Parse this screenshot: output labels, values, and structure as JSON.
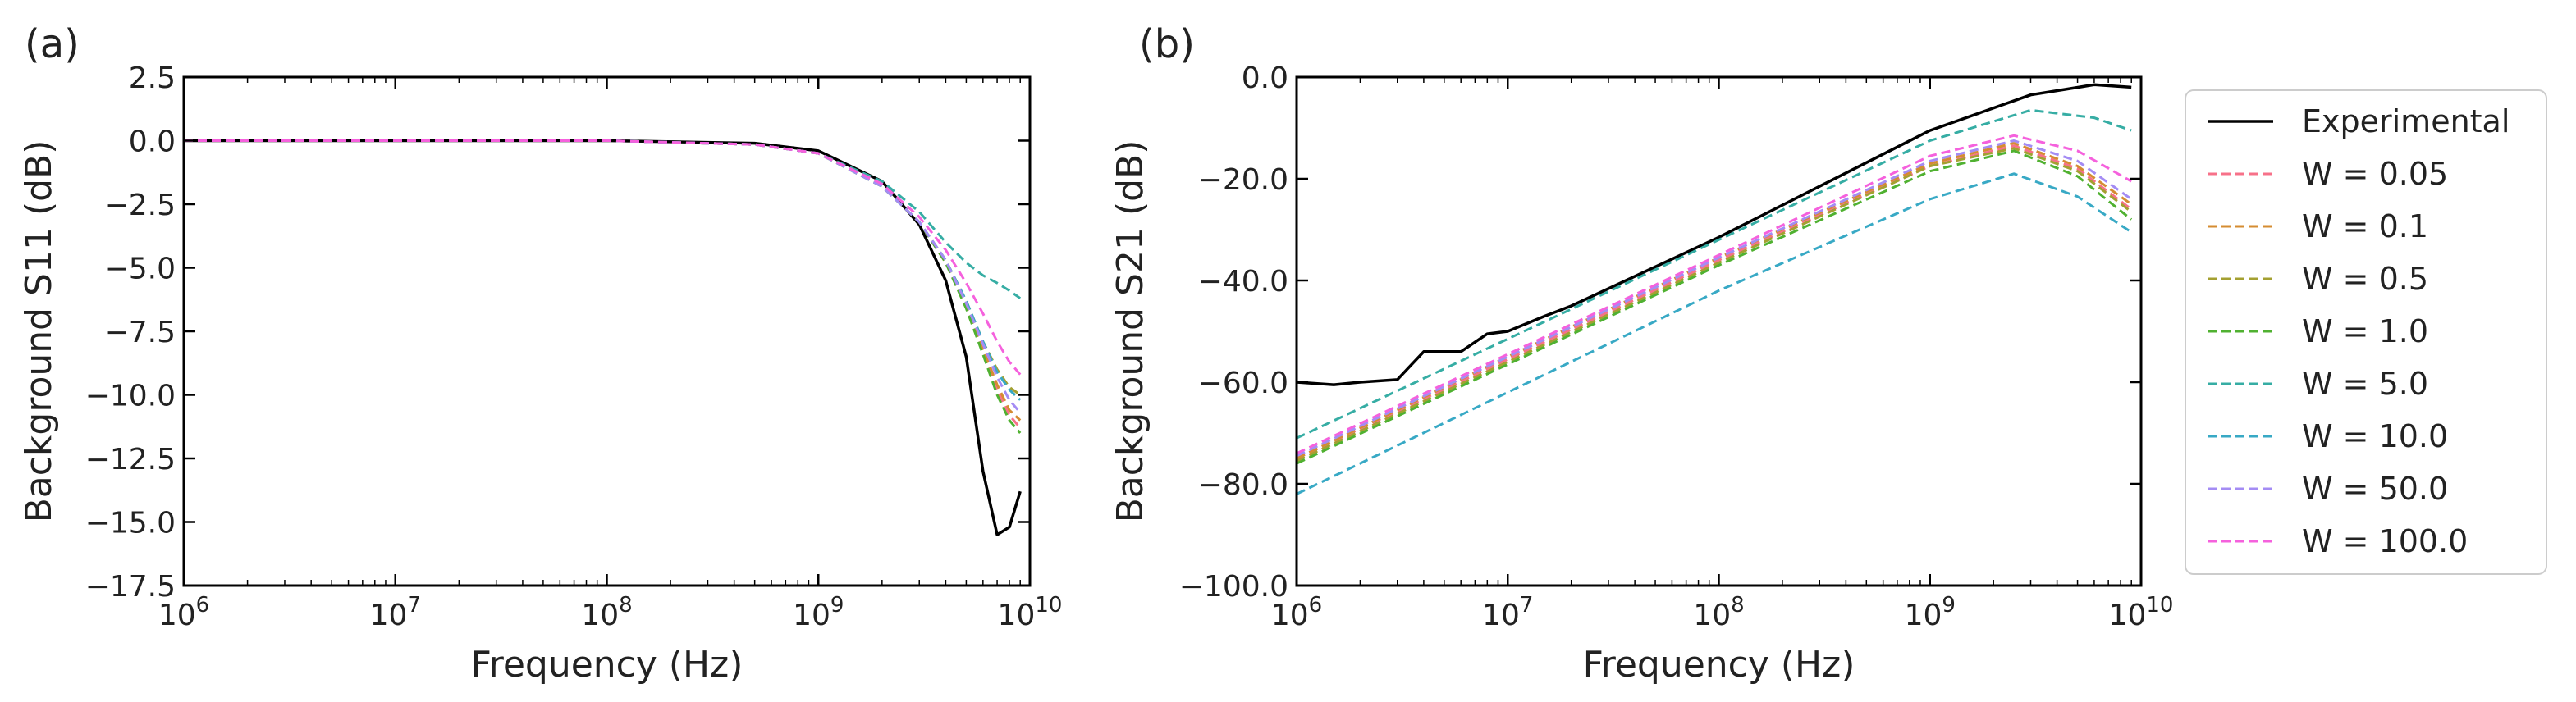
{
  "chart_data": [
    {
      "panel_label": "(a)",
      "type": "line",
      "xscale": "log",
      "xlabel": "Frequency (Hz)",
      "ylabel": "Background S11 (dB)",
      "xlim": [
        1000000,
        10000000000
      ],
      "ylim": [
        -17.5,
        2.5
      ],
      "xticks": [
        1000000,
        10000000,
        100000000,
        1000000000,
        10000000000
      ],
      "xtick_labels": [
        {
          "base": "10",
          "exp": "6"
        },
        {
          "base": "10",
          "exp": "7"
        },
        {
          "base": "10",
          "exp": "8"
        },
        {
          "base": "10",
          "exp": "9"
        },
        {
          "base": "10",
          "exp": "10"
        }
      ],
      "yticks": [
        2.5,
        0.0,
        -2.5,
        -5.0,
        -7.5,
        -10.0,
        -12.5,
        -15.0,
        -17.5
      ],
      "ytick_labels": [
        "2.5",
        "0.0",
        "−2.5",
        "−5.0",
        "−7.5",
        "−10.0",
        "−12.5",
        "−15.0",
        "−17.5"
      ],
      "series": [
        {
          "name": "Experimental",
          "style": "solid",
          "x": [
            1000000,
            100000000,
            500000000,
            1000000000,
            2000000000,
            3000000000,
            4000000000,
            5000000000,
            6000000000,
            7000000000,
            8000000000,
            9000000000
          ],
          "y": [
            0,
            0,
            -0.1,
            -0.4,
            -1.6,
            -3.3,
            -5.5,
            -8.5,
            -13,
            -15.5,
            -15.2,
            -13.8
          ]
        },
        {
          "name": "W = 0.05",
          "style": "dashed",
          "x": [
            1000000,
            100000000,
            500000000,
            1000000000,
            2000000000,
            3000000000,
            4000000000,
            5000000000,
            6000000000,
            7000000000,
            8000000000,
            9000000000
          ],
          "y": [
            0,
            0,
            -0.15,
            -0.5,
            -1.8,
            -3.2,
            -4.8,
            -6.5,
            -8.3,
            -9.8,
            -10.8,
            -11.3
          ]
        },
        {
          "name": "W = 0.1",
          "style": "dashed",
          "x": [
            1000000,
            100000000,
            500000000,
            1000000000,
            2000000000,
            3000000000,
            4000000000,
            5000000000,
            6000000000,
            7000000000,
            8000000000,
            9000000000
          ],
          "y": [
            0,
            0,
            -0.15,
            -0.5,
            -1.8,
            -3.2,
            -4.8,
            -6.5,
            -8.2,
            -9.6,
            -10.6,
            -11.0
          ]
        },
        {
          "name": "W = 0.5",
          "style": "dashed",
          "x": [
            1000000,
            100000000,
            500000000,
            1000000000,
            2000000000,
            3000000000,
            4000000000,
            5000000000,
            6000000000,
            7000000000,
            8000000000,
            9000000000
          ],
          "y": [
            0,
            0,
            -0.15,
            -0.5,
            -1.8,
            -3.2,
            -4.7,
            -6.3,
            -7.9,
            -9.0,
            -9.7,
            -10.0
          ]
        },
        {
          "name": "W = 1.0",
          "style": "dashed",
          "x": [
            1000000,
            100000000,
            500000000,
            1000000000,
            2000000000,
            3000000000,
            4000000000,
            5000000000,
            6000000000,
            7000000000,
            8000000000,
            9000000000
          ],
          "y": [
            0,
            0,
            -0.15,
            -0.5,
            -1.8,
            -3.2,
            -4.8,
            -6.6,
            -8.4,
            -10.0,
            -11.0,
            -11.5
          ]
        },
        {
          "name": "W = 5.0",
          "style": "dashed",
          "x": [
            1000000,
            100000000,
            500000000,
            1000000000,
            2000000000,
            3000000000,
            4000000000,
            5000000000,
            6000000000,
            7000000000,
            8000000000,
            9000000000
          ],
          "y": [
            0,
            0,
            -0.15,
            -0.5,
            -1.6,
            -2.8,
            -4.0,
            -4.8,
            -5.3,
            -5.6,
            -5.9,
            -6.2
          ]
        },
        {
          "name": "W = 10.0",
          "style": "dashed",
          "x": [
            1000000,
            100000000,
            500000000,
            1000000000,
            2000000000,
            3000000000,
            4000000000,
            5000000000,
            6000000000,
            7000000000,
            8000000000,
            9000000000
          ],
          "y": [
            0,
            0,
            -0.15,
            -0.5,
            -1.8,
            -3.2,
            -4.7,
            -6.3,
            -7.9,
            -9.1,
            -9.8,
            -10.2
          ]
        },
        {
          "name": "W = 50.0",
          "style": "dashed",
          "x": [
            1000000,
            100000000,
            500000000,
            1000000000,
            2000000000,
            3000000000,
            4000000000,
            5000000000,
            6000000000,
            7000000000,
            8000000000,
            9000000000
          ],
          "y": [
            0,
            0,
            -0.15,
            -0.5,
            -1.8,
            -3.2,
            -4.7,
            -6.4,
            -8.0,
            -9.3,
            -10.2,
            -10.7
          ]
        },
        {
          "name": "W = 100.0",
          "style": "dashed",
          "x": [
            1000000,
            100000000,
            500000000,
            1000000000,
            2000000000,
            3000000000,
            4000000000,
            5000000000,
            6000000000,
            7000000000,
            8000000000,
            9000000000
          ],
          "y": [
            0,
            0,
            -0.15,
            -0.5,
            -1.7,
            -3.0,
            -4.3,
            -5.6,
            -6.8,
            -7.9,
            -8.7,
            -9.2
          ]
        }
      ]
    },
    {
      "panel_label": "(b)",
      "type": "line",
      "xscale": "log",
      "xlabel": "Frequency (Hz)",
      "ylabel": "Background S21 (dB)",
      "xlim": [
        1000000,
        10000000000
      ],
      "ylim": [
        -100,
        0
      ],
      "xticks": [
        1000000,
        10000000,
        100000000,
        1000000000,
        10000000000
      ],
      "xtick_labels": [
        {
          "base": "10",
          "exp": "6"
        },
        {
          "base": "10",
          "exp": "7"
        },
        {
          "base": "10",
          "exp": "8"
        },
        {
          "base": "10",
          "exp": "9"
        },
        {
          "base": "10",
          "exp": "10"
        }
      ],
      "yticks": [
        0,
        -20,
        -40,
        -60,
        -80,
        -100
      ],
      "ytick_labels": [
        "0.0",
        "−20.0",
        "−40.0",
        "−60.0",
        "−80.0",
        "−100.0"
      ],
      "series": [
        {
          "name": "Experimental",
          "style": "solid",
          "x": [
            1000000,
            1500000,
            2000000,
            3000000,
            4000000,
            6000000,
            8000000,
            10000000,
            15000000,
            20000000,
            100000000,
            1000000000,
            3000000000,
            6000000000,
            9000000000
          ],
          "y": [
            -60,
            -60.5,
            -60,
            -59.5,
            -54,
            -54,
            -50.5,
            -50,
            -47,
            -45,
            -31.5,
            -10.5,
            -3.5,
            -1.5,
            -2
          ]
        },
        {
          "name": "W = 0.05",
          "style": "dashed",
          "x": [
            1000000,
            10000000,
            100000000,
            1000000000,
            2500000000,
            5000000000,
            9000000000
          ],
          "y": [
            -75,
            -55.5,
            -36,
            -17.5,
            -13.5,
            -18,
            -26
          ]
        },
        {
          "name": "W = 0.1",
          "style": "dashed",
          "x": [
            1000000,
            10000000,
            100000000,
            1000000000,
            2500000000,
            5000000000,
            9000000000
          ],
          "y": [
            -75,
            -55,
            -35.5,
            -17,
            -13,
            -17.5,
            -25
          ]
        },
        {
          "name": "W = 0.5",
          "style": "dashed",
          "x": [
            1000000,
            10000000,
            100000000,
            1000000000,
            2500000000,
            5000000000,
            9000000000
          ],
          "y": [
            -75.5,
            -56,
            -36.5,
            -17.5,
            -14,
            -18.5,
            -26.5
          ]
        },
        {
          "name": "W = 1.0",
          "style": "dashed",
          "x": [
            1000000,
            10000000,
            100000000,
            1000000000,
            2500000000,
            5000000000,
            9000000000
          ],
          "y": [
            -76,
            -56.5,
            -37,
            -18.5,
            -14.5,
            -19.5,
            -28
          ]
        },
        {
          "name": "W = 5.0",
          "style": "dashed",
          "x": [
            1000000,
            10000000,
            100000000,
            1000000000,
            3000000000,
            6000000000,
            9000000000
          ],
          "y": [
            -71,
            -51.5,
            -32,
            -12.5,
            -6.5,
            -8,
            -10.5
          ]
        },
        {
          "name": "W = 10.0",
          "style": "dashed",
          "x": [
            1000000,
            10000000,
            100000000,
            1000000000,
            2500000000,
            5000000000,
            9000000000
          ],
          "y": [
            -82,
            -62,
            -42,
            -24,
            -19,
            -23.5,
            -30.5
          ]
        },
        {
          "name": "W = 50.0",
          "style": "dashed",
          "x": [
            1000000,
            10000000,
            100000000,
            1000000000,
            2500000000,
            5000000000,
            9000000000
          ],
          "y": [
            -74.5,
            -55,
            -35.5,
            -16.5,
            -12.5,
            -16.5,
            -24
          ]
        },
        {
          "name": "W = 100.0",
          "style": "dashed",
          "x": [
            1000000,
            10000000,
            100000000,
            1000000000,
            2500000000,
            5000000000,
            9000000000
          ],
          "y": [
            -74,
            -54.5,
            -35,
            -15.5,
            -11.5,
            -14.5,
            -20.5
          ]
        }
      ]
    }
  ],
  "legend": {
    "placement": "right of panel (b)",
    "items": [
      {
        "label": "Experimental",
        "color": "#000000",
        "style": "solid"
      },
      {
        "label": "W = 0.05",
        "color": "#f77189",
        "style": "dashed"
      },
      {
        "label": "W = 0.1",
        "color": "#d58c32",
        "style": "dashed"
      },
      {
        "label": "W = 0.5",
        "color": "#a4a031",
        "style": "dashed"
      },
      {
        "label": "W = 1.0",
        "color": "#50b131",
        "style": "dashed"
      },
      {
        "label": "W = 5.0",
        "color": "#36ada4",
        "style": "dashed"
      },
      {
        "label": "W = 10.0",
        "color": "#38a9c5",
        "style": "dashed"
      },
      {
        "label": "W = 50.0",
        "color": "#a48cf4",
        "style": "dashed"
      },
      {
        "label": "W = 100.0",
        "color": "#f561dd",
        "style": "dashed"
      }
    ]
  }
}
